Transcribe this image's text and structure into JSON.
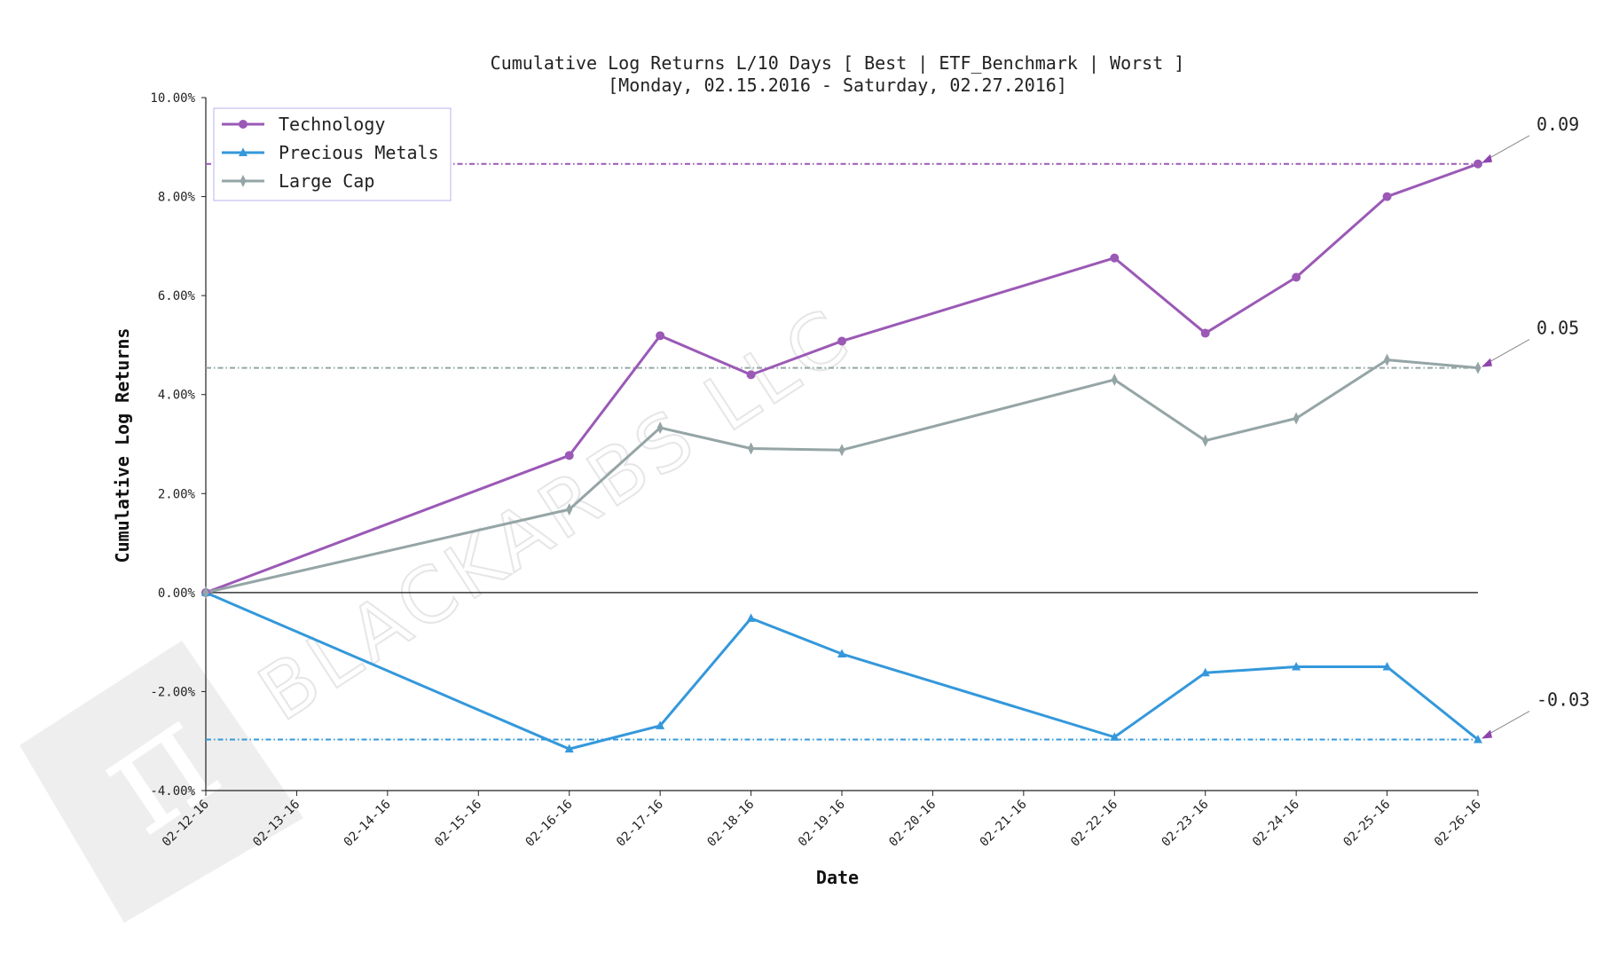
{
  "chart_data": {
    "type": "line",
    "title": "Cumulative Log Returns L/10 Days [ Best | ETF_Benchmark | Worst ]",
    "subtitle": "[Monday, 02.15.2016 - Saturday, 02.27.2016]",
    "xlabel": "Date",
    "ylabel": "Cumulative Log Returns",
    "ylim": [
      -0.04,
      0.1
    ],
    "yticks": [
      -0.04,
      -0.02,
      0.0,
      0.02,
      0.04,
      0.06,
      0.08,
      0.1
    ],
    "ytick_labels": [
      "-4.00%",
      "-2.00%",
      "0.00%",
      "2.00%",
      "4.00%",
      "6.00%",
      "8.00%",
      "10.00%"
    ],
    "xtick_labels": [
      "02-12-16",
      "02-13-16",
      "02-14-16",
      "02-15-16",
      "02-16-16",
      "02-17-16",
      "02-18-16",
      "02-19-16",
      "02-20-16",
      "02-21-16",
      "02-22-16",
      "02-23-16",
      "02-24-16",
      "02-25-16",
      "02-26-16"
    ],
    "legend_position": "top-left",
    "grid": false,
    "watermark": "BLACKARBS LLC",
    "series": [
      {
        "name": "Technology",
        "color": "#9b59b6",
        "marker": "circle",
        "x": [
          0,
          4,
          5,
          6,
          7,
          10,
          11,
          12,
          13,
          14
        ],
        "values": [
          0.0,
          0.0277,
          0.0519,
          0.044,
          0.0508,
          0.0676,
          0.0524,
          0.0637,
          0.08,
          0.0866
        ],
        "reference_line": 0.0866,
        "annotation": "0.09"
      },
      {
        "name": "Precious Metals",
        "color": "#3498db",
        "marker": "triangle",
        "x": [
          0,
          4,
          5,
          6,
          7,
          10,
          11,
          12,
          13,
          14
        ],
        "values": [
          0.0,
          -0.0316,
          -0.0269,
          -0.0052,
          -0.0124,
          -0.0292,
          -0.0162,
          -0.015,
          -0.015,
          -0.0297
        ],
        "reference_line": -0.0297,
        "annotation": "-0.03"
      },
      {
        "name": "Large Cap",
        "color": "#95a5a6",
        "marker": "thin-diamond",
        "x": [
          0,
          4,
          5,
          6,
          7,
          10,
          11,
          12,
          13,
          14
        ],
        "values": [
          0.0,
          0.0168,
          0.0333,
          0.0291,
          0.0288,
          0.043,
          0.0307,
          0.0352,
          0.047,
          0.0454
        ],
        "reference_line": 0.0454,
        "annotation": "0.05"
      }
    ]
  }
}
